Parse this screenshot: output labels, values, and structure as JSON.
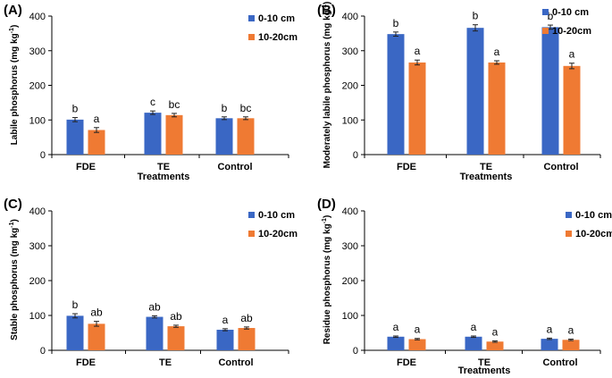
{
  "chart_data": [
    {
      "panel_label": "(A)",
      "type": "bar",
      "ylabel_main": "Labile phosphorus (mg kg",
      "ylabel_sup": "-1",
      "ylabel_close": ")",
      "xlabel": "Treatments",
      "categories": [
        "FDE",
        "TE",
        "Control"
      ],
      "ylim": [
        0,
        400
      ],
      "yticks": [
        0,
        100,
        200,
        300,
        400
      ],
      "legend_position": "top-right",
      "series": [
        {
          "name": "0-10 cm",
          "color": "#3a67c4",
          "values": [
            101,
            121,
            105
          ],
          "errors": [
            6,
            5,
            4
          ],
          "letters": [
            "b",
            "c",
            "b"
          ]
        },
        {
          "name": "10-20cm",
          "color": "#ef7a33",
          "values": [
            71,
            114,
            105
          ],
          "errors": [
            7,
            5,
            4
          ],
          "letters": [
            "a",
            "bc",
            "bc"
          ]
        }
      ]
    },
    {
      "panel_label": "(B)",
      "type": "bar",
      "ylabel_main": "Moderately labile phosphorus (mg kg",
      "ylabel_sup": "-1",
      "ylabel_close": ")",
      "xlabel": "Treatments",
      "categories": [
        "FDE",
        "TE",
        "Control"
      ],
      "ylim": [
        0,
        400
      ],
      "yticks": [
        0,
        100,
        200,
        300,
        400
      ],
      "legend_position": "top-right",
      "series": [
        {
          "name": "0-10 cm",
          "color": "#3a67c4",
          "values": [
            348,
            366,
            368
          ],
          "errors": [
            6,
            9,
            6
          ],
          "letters": [
            "b",
            "b",
            "b"
          ]
        },
        {
          "name": "10-20cm",
          "color": "#ef7a33",
          "values": [
            266,
            266,
            256
          ],
          "errors": [
            7,
            5,
            8
          ],
          "letters": [
            "a",
            "a",
            "a"
          ]
        }
      ]
    },
    {
      "panel_label": "(C)",
      "type": "bar",
      "ylabel_main": "Stable phosphorus (mg kg",
      "ylabel_sup": "-1",
      "ylabel_close": ")",
      "xlabel": "",
      "categories": [
        "FDE",
        "TE",
        "Control"
      ],
      "ylim": [
        0,
        400
      ],
      "yticks": [
        0,
        100,
        200,
        300,
        400
      ],
      "legend_position": "top-right",
      "series": [
        {
          "name": "0-10 cm",
          "color": "#3a67c4",
          "values": [
            99,
            96,
            59
          ],
          "errors": [
            6,
            3,
            3
          ],
          "letters": [
            "b",
            "ab",
            "a"
          ]
        },
        {
          "name": "10-20cm",
          "color": "#ef7a33",
          "values": [
            76,
            69,
            64
          ],
          "errors": [
            7,
            3,
            3
          ],
          "letters": [
            "ab",
            "ab",
            "ab"
          ]
        }
      ]
    },
    {
      "panel_label": "(D)",
      "type": "bar",
      "ylabel_main": "Residue phosphorus (mg kg",
      "ylabel_sup": "-1",
      "ylabel_close": ")",
      "xlabel": "Treatments",
      "categories": [
        "FDE",
        "TE",
        "Control"
      ],
      "ylim": [
        0,
        400
      ],
      "yticks": [
        0,
        100,
        200,
        300,
        400
      ],
      "legend_position": "top-right",
      "series": [
        {
          "name": "0-10 cm",
          "color": "#3a67c4",
          "values": [
            39,
            39,
            33
          ],
          "errors": [
            2,
            2,
            2
          ],
          "letters": [
            "a",
            "a",
            "a"
          ]
        },
        {
          "name": "10-20cm",
          "color": "#ef7a33",
          "values": [
            32,
            25,
            30
          ],
          "errors": [
            2,
            2,
            2
          ],
          "letters": [
            "a",
            "a",
            "a"
          ]
        }
      ]
    }
  ]
}
